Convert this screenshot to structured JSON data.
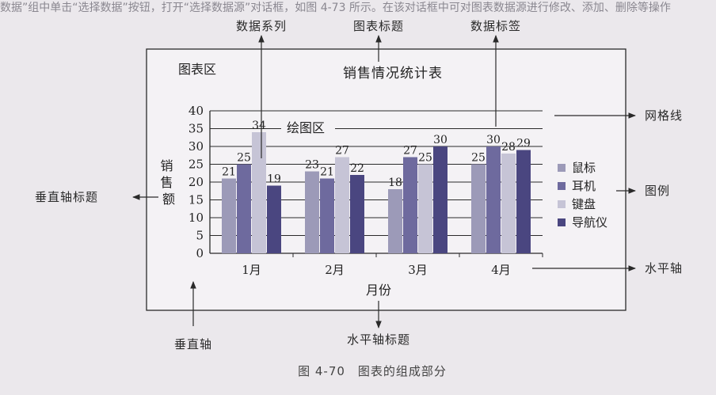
{
  "top_strip_text": "数据”组中单击“选择数据”按钮，打开“选择数据源”对话框，如图 4-73 所示。在该对话框中可对图表数据源进行修改、添加、删除等操作",
  "callouts": {
    "data_series": "数据系列",
    "chart_title": "图表标题",
    "data_label": "数据标签",
    "gridlines": "网格线",
    "legend": "图例",
    "horizontal_axis": "水平轴",
    "vertical_axis_title": "垂直轴标题",
    "vertical_axis": "垂直轴",
    "horizontal_axis_title": "水平轴标题"
  },
  "chart_area_label": "图表区",
  "plot_area_label": "绘图区",
  "caption": "图 4-70　图表的组成部分",
  "colors": {
    "鼠标": "#9c9ab8",
    "耳机": "#6e6a9e",
    "键盘": "#c6c4d6",
    "导航仪": "#4a4680"
  },
  "chart_data": {
    "type": "bar",
    "title": "销售情况统计表",
    "xlabel": "月份",
    "ylabel": "销售额",
    "categories": [
      "1月",
      "2月",
      "3月",
      "4月"
    ],
    "series": [
      {
        "name": "鼠标",
        "values": [
          21,
          23,
          18,
          25
        ]
      },
      {
        "name": "耳机",
        "values": [
          25,
          21,
          27,
          30
        ]
      },
      {
        "name": "键盘",
        "values": [
          34,
          27,
          25,
          28
        ]
      },
      {
        "name": "导航仪",
        "values": [
          19,
          22,
          30,
          29
        ]
      }
    ],
    "ylim": [
      0,
      40
    ],
    "yticks": [
      0,
      5,
      10,
      15,
      20,
      25,
      30,
      35,
      40
    ],
    "grid": true,
    "legend": "right",
    "data_labels": true
  }
}
